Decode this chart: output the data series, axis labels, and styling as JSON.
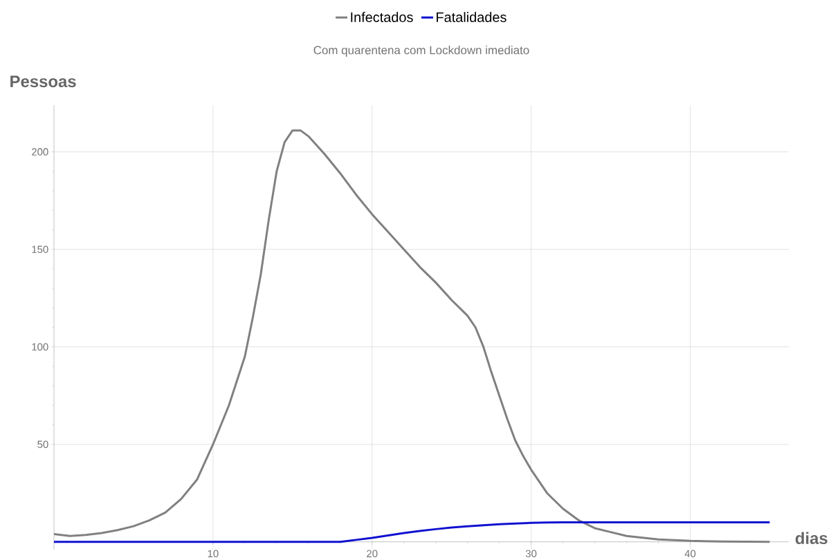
{
  "chart_data": {
    "type": "line",
    "title": "Com quarentena com Lockdown imediato",
    "xlabel": "dias",
    "ylabel": "Pessoas",
    "legend": "top",
    "grid": true,
    "xlim": [
      0,
      46.2
    ],
    "ylim": [
      -4,
      224
    ],
    "xticks": [
      10,
      20,
      30,
      40
    ],
    "yticks": [
      50,
      100,
      150,
      200
    ],
    "series": [
      {
        "name": "Infectados",
        "color": "#808080",
        "x": [
          0,
          1,
          2,
          3,
          4,
          5,
          6,
          7,
          8,
          9,
          10,
          11,
          12,
          12.5,
          13,
          13.5,
          14,
          14.5,
          15,
          15.5,
          16,
          17,
          18,
          19,
          20,
          21,
          22,
          23,
          24,
          25,
          26,
          26.5,
          27,
          27.5,
          28,
          28.5,
          29,
          29.5,
          30,
          31,
          32,
          33,
          34,
          35,
          36,
          38,
          40,
          42,
          45
        ],
        "values": [
          4,
          3,
          3.5,
          4.5,
          6,
          8,
          11,
          15,
          22,
          32,
          50,
          70,
          95,
          115,
          137,
          165,
          190,
          205,
          211,
          211,
          208,
          199,
          189,
          178,
          168,
          159,
          150,
          141,
          133,
          124,
          116,
          110,
          100,
          87,
          75,
          63,
          52,
          44,
          37,
          25,
          17,
          11,
          7,
          5,
          3,
          1.2,
          0.5,
          0.2,
          0
        ]
      },
      {
        "name": "Fatalidades",
        "color": "#1010d0",
        "x": [
          0,
          18,
          19,
          20,
          21,
          22,
          23,
          24,
          25,
          26,
          27,
          28,
          29,
          30,
          31,
          32,
          33,
          35,
          45
        ],
        "values": [
          0,
          0,
          1,
          2,
          3.3,
          4.5,
          5.6,
          6.5,
          7.3,
          8,
          8.5,
          9,
          9.4,
          9.7,
          9.9,
          10,
          10,
          10,
          10
        ]
      }
    ]
  }
}
